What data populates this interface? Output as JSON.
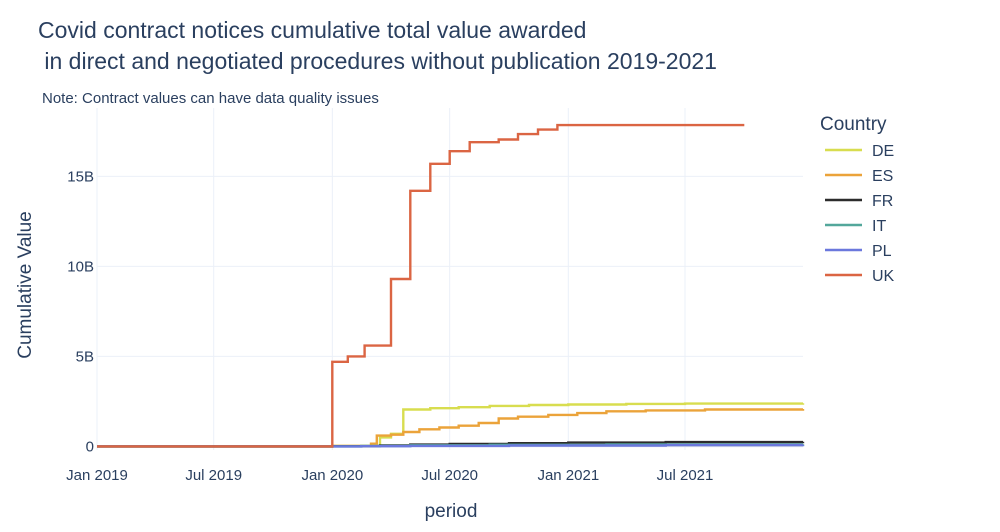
{
  "chart_data": {
    "type": "line",
    "line_shape": "step",
    "title_lines": [
      "Covid contract notices cumulative total value awarded",
      " in direct and negotiated procedures without publication 2019-2021"
    ],
    "note": "Note: Contract values can have data quality issues",
    "xlabel": "period",
    "ylabel": "Cumulative Value",
    "legend_title": "Country",
    "legend_position": "right",
    "grid": true,
    "x_range": [
      "2019-01-01",
      "2021-12-31"
    ],
    "y_range": [
      -0.2,
      18.8
    ],
    "y_unit": "billions",
    "x_ticks": [
      {
        "date": "2019-01-01",
        "label": "Jan 2019"
      },
      {
        "date": "2019-07-01",
        "label": "Jul 2019"
      },
      {
        "date": "2020-01-01",
        "label": "Jan 2020"
      },
      {
        "date": "2020-07-01",
        "label": "Jul 2020"
      },
      {
        "date": "2021-01-01",
        "label": "Jan 2021"
      },
      {
        "date": "2021-07-01",
        "label": "Jul 2021"
      }
    ],
    "y_ticks": [
      {
        "value": 0,
        "label": "0"
      },
      {
        "value": 5,
        "label": "5B"
      },
      {
        "value": 10,
        "label": "10B"
      },
      {
        "value": 15,
        "label": "15B"
      }
    ],
    "series": [
      {
        "name": "DE",
        "color": "#d8dd4f",
        "points": [
          [
            "2019-01-01",
            0
          ],
          [
            "2020-01-01",
            0.02
          ],
          [
            "2020-03-15",
            0.5
          ],
          [
            "2020-04-01",
            0.7
          ],
          [
            "2020-04-20",
            2.05
          ],
          [
            "2020-06-01",
            2.12
          ],
          [
            "2020-07-15",
            2.18
          ],
          [
            "2020-09-01",
            2.25
          ],
          [
            "2020-11-01",
            2.3
          ],
          [
            "2021-01-01",
            2.33
          ],
          [
            "2021-04-01",
            2.36
          ],
          [
            "2021-07-01",
            2.38
          ],
          [
            "2021-12-31",
            2.4
          ]
        ]
      },
      {
        "name": "ES",
        "color": "#eba33a",
        "points": [
          [
            "2019-01-01",
            0
          ],
          [
            "2020-01-01",
            0.03
          ],
          [
            "2020-03-01",
            0.15
          ],
          [
            "2020-03-10",
            0.6
          ],
          [
            "2020-04-01",
            0.65
          ],
          [
            "2020-04-20",
            0.8
          ],
          [
            "2020-05-15",
            0.95
          ],
          [
            "2020-06-15",
            1.05
          ],
          [
            "2020-07-15",
            1.15
          ],
          [
            "2020-08-15",
            1.3
          ],
          [
            "2020-09-15",
            1.55
          ],
          [
            "2020-10-15",
            1.65
          ],
          [
            "2020-12-01",
            1.75
          ],
          [
            "2021-01-15",
            1.85
          ],
          [
            "2021-03-01",
            1.95
          ],
          [
            "2021-05-01",
            2.0
          ],
          [
            "2021-08-01",
            2.05
          ],
          [
            "2021-12-31",
            2.08
          ]
        ]
      },
      {
        "name": "FR",
        "color": "#2c2c2c",
        "points": [
          [
            "2019-01-01",
            0
          ],
          [
            "2020-01-01",
            0.01
          ],
          [
            "2020-03-15",
            0.05
          ],
          [
            "2020-05-01",
            0.1
          ],
          [
            "2020-07-01",
            0.14
          ],
          [
            "2020-10-01",
            0.18
          ],
          [
            "2021-01-01",
            0.21
          ],
          [
            "2021-06-01",
            0.24
          ],
          [
            "2021-12-31",
            0.26
          ]
        ]
      },
      {
        "name": "IT",
        "color": "#53a79b",
        "points": [
          [
            "2019-01-01",
            0
          ],
          [
            "2020-02-15",
            0.02
          ],
          [
            "2020-05-01",
            0.06
          ],
          [
            "2020-09-01",
            0.09
          ],
          [
            "2021-03-01",
            0.11
          ],
          [
            "2021-12-31",
            0.12
          ]
        ]
      },
      {
        "name": "PL",
        "color": "#6b78dd",
        "points": [
          [
            "2019-01-01",
            0
          ],
          [
            "2020-02-15",
            0.01
          ],
          [
            "2020-05-01",
            0.03
          ],
          [
            "2020-10-01",
            0.05
          ],
          [
            "2021-06-01",
            0.07
          ],
          [
            "2021-12-31",
            0.08
          ]
        ]
      },
      {
        "name": "UK",
        "color": "#db6543",
        "points": [
          [
            "2019-01-01",
            0
          ],
          [
            "2020-01-01",
            4.7
          ],
          [
            "2020-01-25",
            5.0
          ],
          [
            "2020-02-20",
            5.6
          ],
          [
            "2020-04-01",
            9.3
          ],
          [
            "2020-05-01",
            14.2
          ],
          [
            "2020-06-01",
            15.7
          ],
          [
            "2020-07-01",
            16.4
          ],
          [
            "2020-08-01",
            16.9
          ],
          [
            "2020-09-15",
            17.05
          ],
          [
            "2020-10-15",
            17.35
          ],
          [
            "2020-11-15",
            17.6
          ],
          [
            "2020-12-15",
            17.85
          ],
          [
            "2021-03-01",
            17.85
          ],
          [
            "2021-10-01",
            17.85
          ]
        ]
      }
    ]
  }
}
